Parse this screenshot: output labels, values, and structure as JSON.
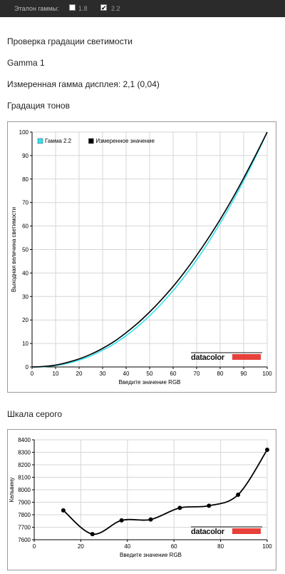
{
  "toolbar": {
    "gamma_ref_label": "Эталон гаммы:",
    "opt1_label": "1.8",
    "opt1_checked": false,
    "opt2_label": "2.2",
    "opt2_checked": true
  },
  "page": {
    "heading": "Проверка градации светимости",
    "gamma_name": "Gamma 1",
    "measured": "Измеренная гамма дисплея: 2,1 (0,04)",
    "tone_heading": "Градация тонов",
    "gray_heading": "Шкала серого"
  },
  "logo": {
    "text": "datacolor",
    "bar_color": "#e8403a"
  },
  "chart_data": [
    {
      "type": "line",
      "title": "",
      "xlabel": "Введите значение RGB",
      "ylabel": "Выходная величина светимости",
      "xlim": [
        0,
        100
      ],
      "ylim": [
        0,
        100
      ],
      "xticks": [
        0,
        10,
        20,
        30,
        40,
        50,
        60,
        70,
        80,
        90,
        100
      ],
      "yticks": [
        0,
        10,
        20,
        30,
        40,
        50,
        60,
        70,
        80,
        90,
        100
      ],
      "grid": true,
      "legend_position": "top-left",
      "series": [
        {
          "name": "Гамма 2.2",
          "color": "#33e0ee",
          "x": [
            0,
            5,
            10,
            15,
            20,
            25,
            30,
            35,
            40,
            45,
            50,
            55,
            60,
            65,
            70,
            75,
            80,
            85,
            90,
            95,
            100
          ],
          "y": [
            0,
            0.1,
            0.6,
            1.5,
            2.9,
            4.7,
            7.1,
            9.9,
            13.3,
            17.3,
            21.8,
            26.9,
            32.5,
            38.8,
            45.6,
            53.1,
            61.2,
            69.9,
            79.3,
            89.3,
            100
          ]
        },
        {
          "name": "Измеренное значение",
          "color": "#000000",
          "x": [
            0,
            5,
            10,
            15,
            20,
            25,
            30,
            35,
            40,
            45,
            50,
            55,
            60,
            65,
            70,
            75,
            80,
            85,
            90,
            95,
            100
          ],
          "y": [
            0,
            0.2,
            0.8,
            1.9,
            3.4,
            5.4,
            7.9,
            10.9,
            14.6,
            18.7,
            23.4,
            28.6,
            34.3,
            40.6,
            47.5,
            54.9,
            62.8,
            71.3,
            80.4,
            90.0,
            100
          ]
        }
      ]
    },
    {
      "type": "line",
      "title": "",
      "xlabel": "Введите значение RGB",
      "ylabel": "Кельвину",
      "xlim": [
        0,
        100
      ],
      "ylim": [
        7600,
        8400
      ],
      "xticks": [
        0,
        20,
        40,
        60,
        80,
        100
      ],
      "yticks": [
        7600,
        7700,
        7800,
        7900,
        8000,
        8100,
        8200,
        8300,
        8400
      ],
      "grid": true,
      "series": [
        {
          "name": "",
          "color": "#000000",
          "markers": true,
          "x": [
            12.5,
            25,
            37.5,
            50,
            62.5,
            75,
            87.5,
            100
          ],
          "y": [
            7835,
            7645,
            7755,
            7762,
            7855,
            7872,
            7960,
            8320
          ]
        }
      ]
    }
  ]
}
